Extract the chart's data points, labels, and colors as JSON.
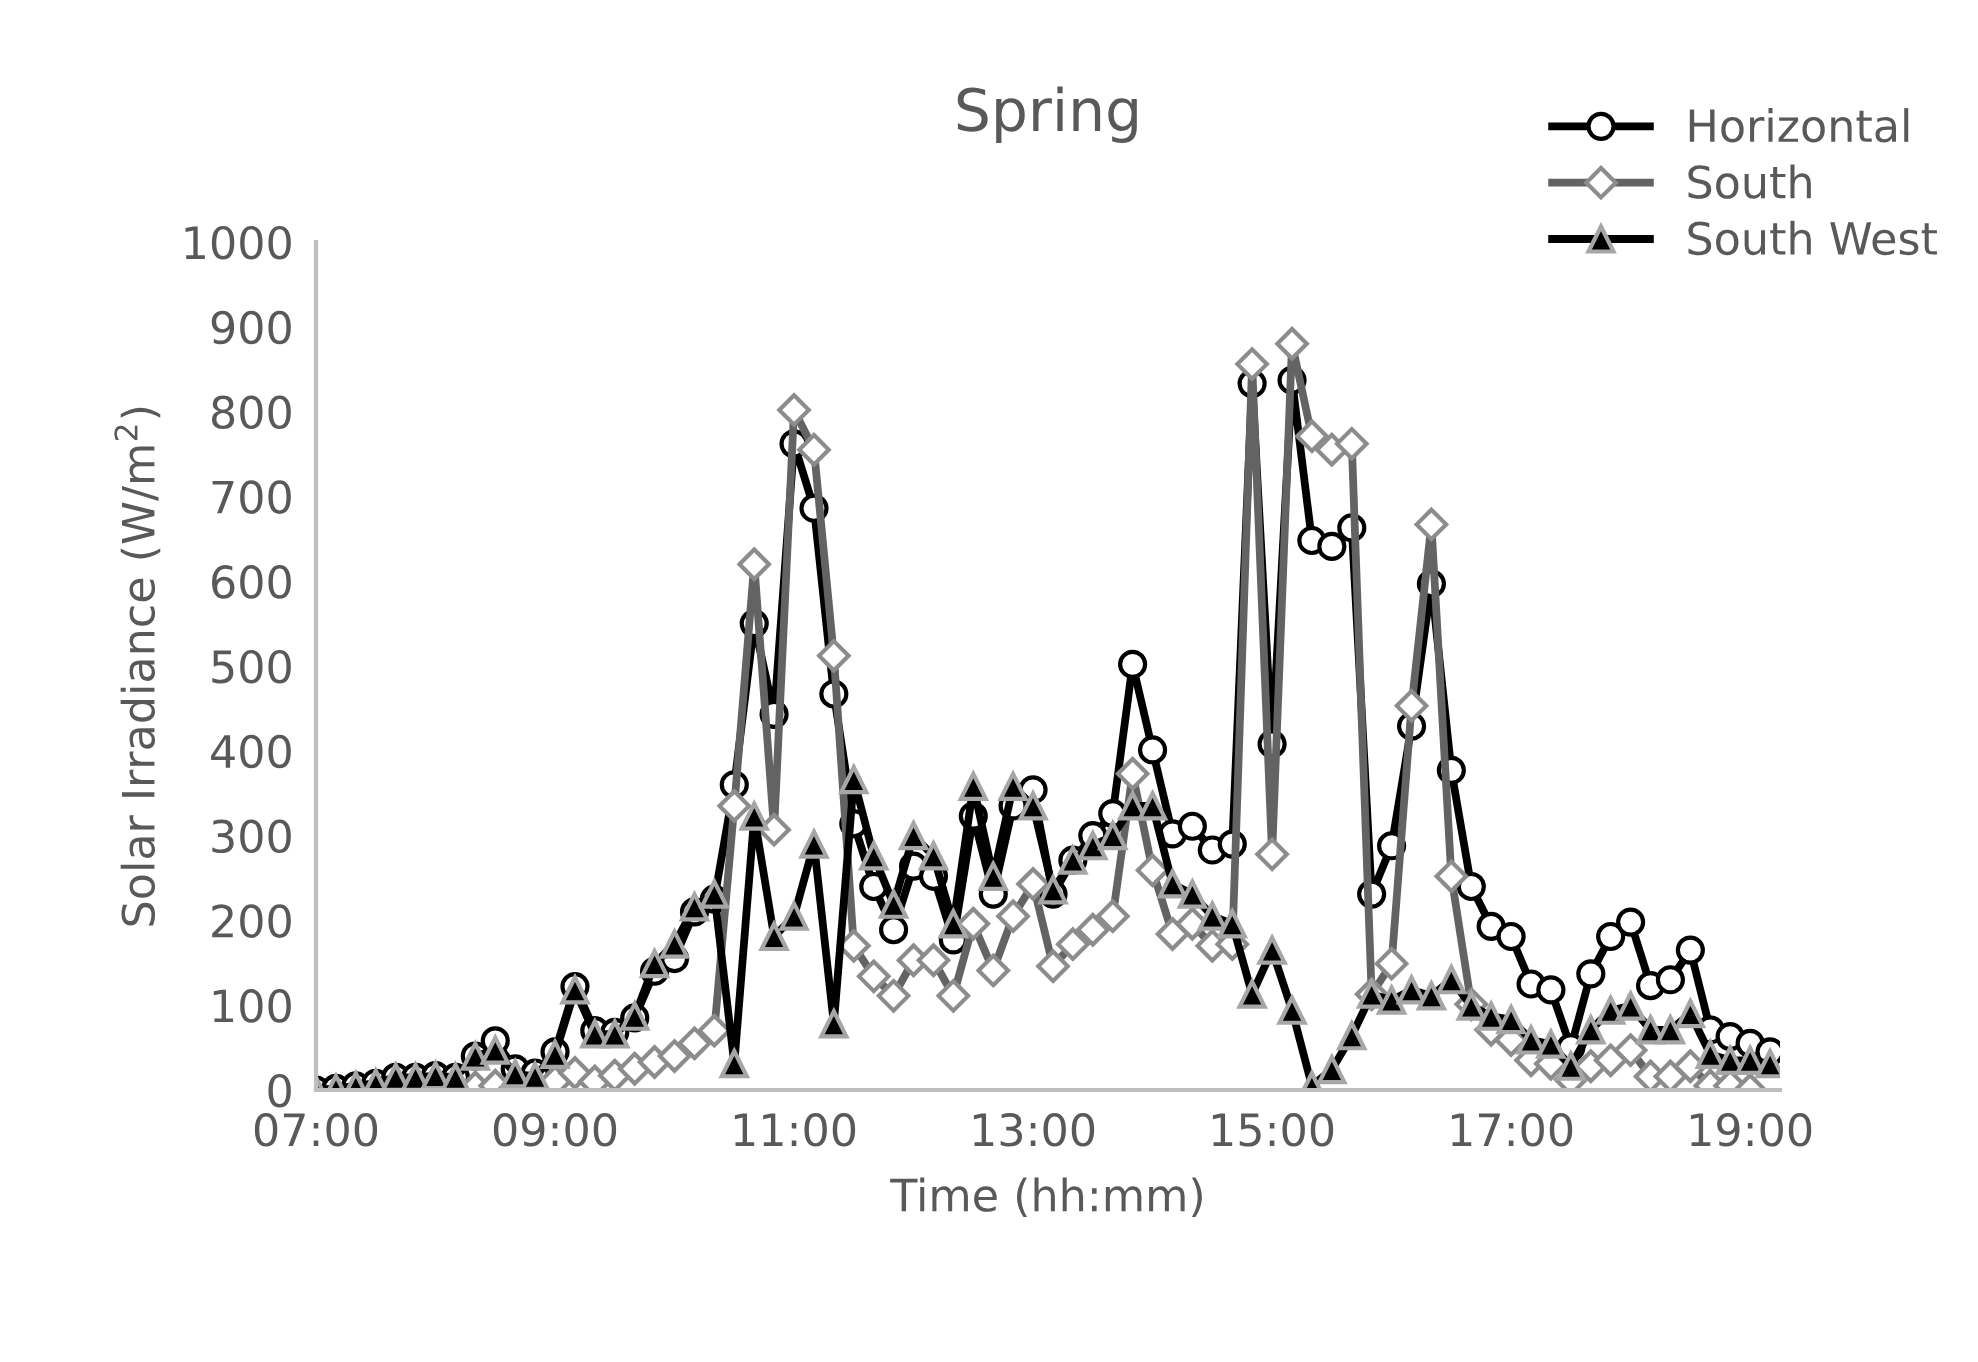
{
  "chart_data": {
    "type": "line",
    "title": "Spring",
    "xlabel": "Time (hh:mm)",
    "ylabel": "Solar Irradiance (W/m$^{2}$)",
    "x": [
      7.0,
      7.167,
      7.333,
      7.5,
      7.667,
      7.833,
      8.0,
      8.167,
      8.333,
      8.5,
      8.667,
      8.833,
      9.0,
      9.167,
      9.333,
      9.5,
      9.667,
      9.833,
      10.0,
      10.167,
      10.333,
      10.5,
      10.667,
      10.833,
      11.0,
      11.167,
      11.333,
      11.5,
      11.667,
      11.833,
      12.0,
      12.167,
      12.333,
      12.5,
      12.667,
      12.833,
      13.0,
      13.167,
      13.333,
      13.5,
      13.667,
      13.833,
      14.0,
      14.167,
      14.333,
      14.5,
      14.667,
      14.833,
      15.0,
      15.167,
      15.333,
      15.5,
      15.667,
      15.833,
      16.0,
      16.167,
      16.333,
      16.5,
      16.667,
      16.833,
      17.0,
      17.167,
      17.333,
      17.5,
      17.667,
      17.833,
      18.0,
      18.167,
      18.333,
      18.5,
      18.667,
      18.833,
      19.0,
      19.167
    ],
    "series": [
      {
        "name": "Horizontal",
        "color": "#000000",
        "marker": "circle",
        "values": [
          0,
          2,
          5,
          8,
          15,
          15,
          17,
          15,
          40,
          58,
          25,
          20,
          45,
          122,
          70,
          68,
          85,
          140,
          155,
          210,
          225,
          360,
          550,
          443,
          762,
          686,
          467,
          314,
          240,
          189,
          264,
          252,
          177,
          323,
          231,
          335,
          354,
          231,
          271,
          300,
          326,
          502,
          401,
          302,
          311,
          283,
          290,
          833,
          408,
          837,
          648,
          641,
          663,
          231,
          288,
          429,
          597,
          377,
          240,
          193,
          181,
          125,
          118,
          50,
          137,
          181,
          198,
          123,
          130,
          165,
          71,
          63,
          55,
          45
        ]
      },
      {
        "name": "South",
        "color": "#636363",
        "marker": "diamond",
        "values": [
          null,
          null,
          null,
          null,
          null,
          null,
          null,
          0,
          3,
          5,
          2,
          3,
          10,
          20,
          10,
          17,
          25,
          33,
          40,
          55,
          70,
          335,
          620,
          307,
          802,
          755,
          512,
          170,
          134,
          111,
          153,
          153,
          111,
          196,
          141,
          205,
          243,
          146,
          172,
          189,
          205,
          373,
          259,
          184,
          196,
          170,
          172,
          856,
          278,
          880,
          771,
          755,
          762,
          113,
          149,
          453,
          667,
          252,
          101,
          71,
          59,
          35,
          31,
          12,
          28,
          35,
          47,
          16,
          16,
          28,
          5,
          5,
          0,
          null
        ]
      },
      {
        "name": "South West",
        "color": "#000000",
        "marker": "triangle",
        "values": [
          0,
          2,
          5,
          8,
          15,
          15,
          17,
          15,
          40,
          47,
          19,
          16,
          42,
          118,
          66,
          66,
          87,
          149,
          172,
          216,
          231,
          31,
          323,
          181,
          205,
          290,
          78,
          366,
          276,
          219,
          300,
          276,
          196,
          358,
          252,
          358,
          335,
          236,
          271,
          288,
          300,
          335,
          335,
          243,
          231,
          205,
          196,
          113,
          165,
          94,
          5,
          24,
          64,
          113,
          106,
          118,
          111,
          130,
          99,
          87,
          83,
          59,
          54,
          28,
          71,
          94,
          99,
          71,
          71,
          90,
          42,
          35,
          35,
          31
        ]
      }
    ],
    "xlim": [
      7.0,
      19.25
    ],
    "xticks": [
      {
        "value": 7,
        "label": "07:00"
      },
      {
        "value": 9,
        "label": "09:00"
      },
      {
        "value": 11,
        "label": "11:00"
      },
      {
        "value": 13,
        "label": "13:00"
      },
      {
        "value": 15,
        "label": "15:00"
      },
      {
        "value": 17,
        "label": "17:00"
      },
      {
        "value": 19,
        "label": "19:00"
      }
    ],
    "ylim": [
      0,
      1000
    ],
    "yticks": [
      0,
      100,
      200,
      300,
      400,
      500,
      600,
      700,
      800,
      900,
      1000
    ],
    "grid": false,
    "legend": "top right",
    "line_style": "solid"
  }
}
